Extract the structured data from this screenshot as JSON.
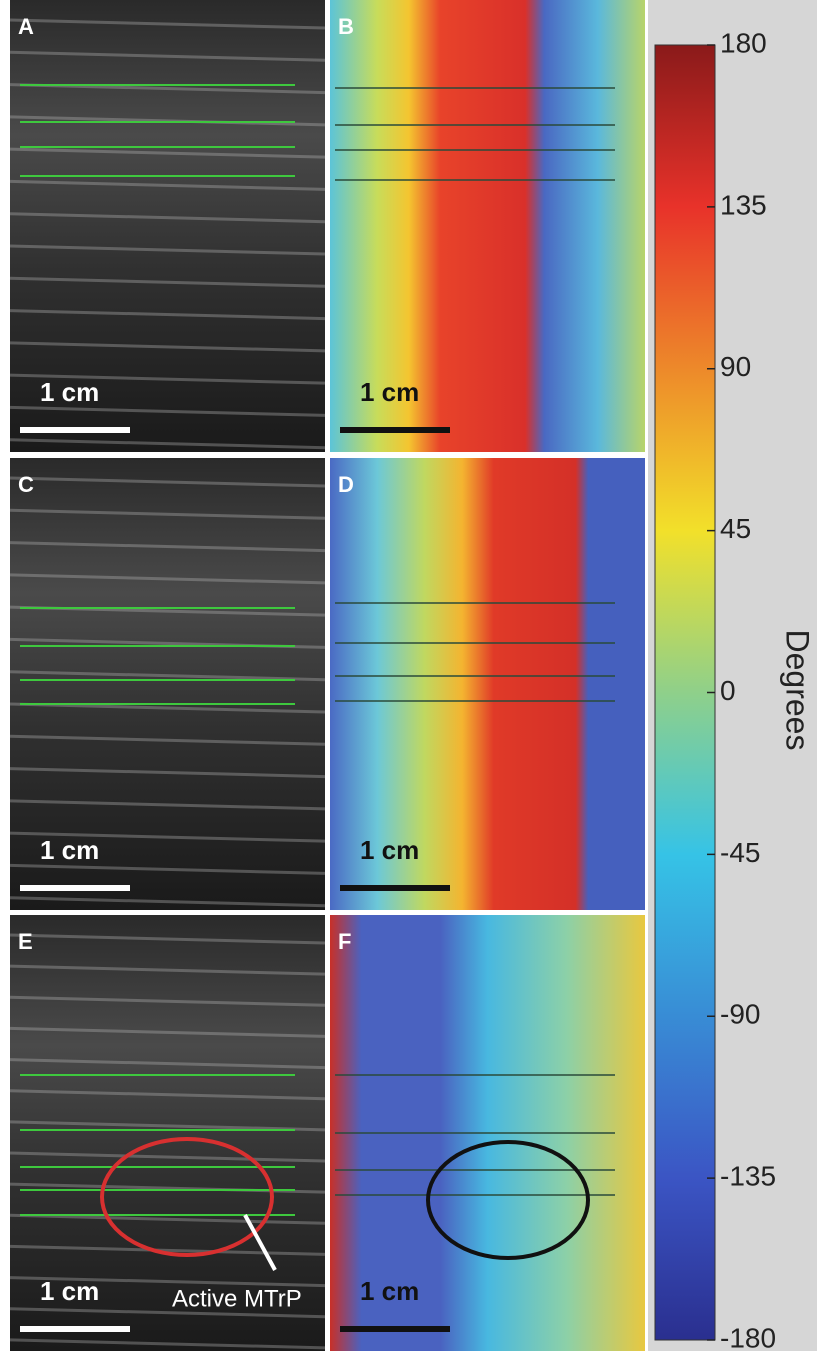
{
  "panels": [
    {
      "label": "A",
      "scale": "1 cm"
    },
    {
      "label": "B",
      "scale": "1 cm"
    },
    {
      "label": "C",
      "scale": "1 cm"
    },
    {
      "label": "D",
      "scale": "1 cm"
    },
    {
      "label": "E",
      "scale": "1 cm"
    },
    {
      "label": "F",
      "scale": "1 cm"
    }
  ],
  "annotation": "Active MTrP",
  "colorbar": {
    "label": "Degrees",
    "lim": [
      -180,
      180
    ],
    "ticks": [
      180,
      135,
      90,
      45,
      0,
      -45,
      -90,
      -135,
      -180
    ]
  }
}
